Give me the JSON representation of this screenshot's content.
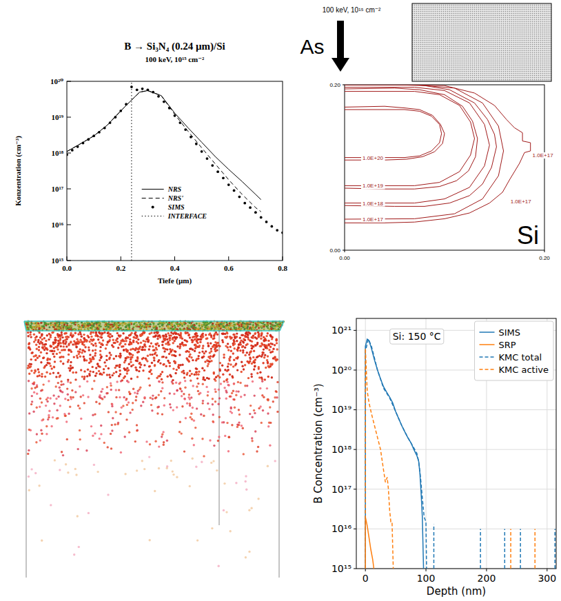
{
  "chart_data": [
    {
      "type": "line",
      "title": "B → Si₃N₄ (0.24 µm)/Si",
      "subtitle": "100 keV, 10¹⁵ cm⁻²",
      "x_label": "Tiefe (µm)",
      "y_label": "Konzentration (cm⁻³)",
      "log": "y",
      "xlim": [
        0,
        0.8
      ],
      "ylim": [
        1000000000000000.0,
        1e+20
      ],
      "xticks": [
        {
          "value": 0,
          "label": "0.0"
        },
        {
          "value": 0.2,
          "label": "0.2"
        },
        {
          "value": 0.4,
          "label": "0.4"
        },
        {
          "value": 0.6,
          "label": "0.6"
        },
        {
          "value": 0.8,
          "label": "0.8"
        }
      ],
      "yticks": [
        {
          "value": 1000000000000000.0,
          "label": "10¹⁵"
        },
        {
          "value": 1e+16,
          "label": "10¹⁶"
        },
        {
          "value": 1e+17,
          "label": "10¹⁷"
        },
        {
          "value": 1e+18,
          "label": "10¹⁸"
        },
        {
          "value": 1e+19,
          "label": "10¹⁹"
        },
        {
          "value": 1e+20,
          "label": "10²⁰"
        }
      ],
      "grid": false,
      "legend": "bottom",
      "series": [
        {
          "name": "NRS",
          "color": "#000000",
          "line_style": "solid",
          "x": [
            0,
            0.05,
            0.1,
            0.15,
            0.2,
            0.24,
            0.27,
            0.3,
            0.35,
            0.4,
            0.45,
            0.5,
            0.55,
            0.6,
            0.65,
            0.7,
            0.72
          ],
          "values": [
            1.1e+18,
            1.8e+18,
            3e+18,
            6e+18,
            1.5e+19,
            3e+19,
            5e+19,
            5.5e+19,
            4e+19,
            1.3e+19,
            5e+18,
            2e+18,
            8e+17,
            3.5e+17,
            1.6e+17,
            7e+16,
            5e+16
          ]
        },
        {
          "name": "NRS'",
          "color": "#000000",
          "line_style": "dashed",
          "x": [
            0,
            0.05,
            0.1,
            0.15,
            0.2,
            0.24,
            0.27,
            0.3,
            0.35,
            0.4,
            0.45,
            0.5,
            0.55,
            0.6,
            0.65,
            0.7,
            0.72
          ],
          "values": [
            1.1e+18,
            1.8e+18,
            3e+18,
            6e+18,
            1.5e+19,
            3e+19,
            5e+19,
            5.5e+19,
            4e+19,
            1.2e+19,
            4e+18,
            1.4e+18,
            5e+17,
            1.8e+17,
            7e+16,
            3e+16,
            2.3e+16
          ]
        },
        {
          "name": "SIMS",
          "color": "#000000",
          "line_style": "none",
          "marker": "circle",
          "x": [
            0,
            0.02,
            0.04,
            0.06,
            0.08,
            0.1,
            0.12,
            0.14,
            0.16,
            0.18,
            0.2,
            0.22,
            0.24,
            0.26,
            0.28,
            0.3,
            0.32,
            0.34,
            0.36,
            0.38,
            0.4,
            0.42,
            0.44,
            0.46,
            0.48,
            0.5,
            0.52,
            0.54,
            0.56,
            0.58,
            0.6,
            0.62,
            0.64,
            0.66,
            0.68,
            0.7,
            0.72,
            0.74,
            0.76,
            0.78,
            0.8
          ],
          "values": [
            9e+17,
            1.2e+18,
            1.5e+18,
            1.9e+18,
            2.4e+18,
            3e+18,
            3.8e+18,
            5e+18,
            7e+18,
            1e+19,
            1.5e+19,
            2.3e+19,
            7e+19,
            5.8e+19,
            6.2e+19,
            5.8e+19,
            5e+19,
            3.8e+19,
            2.7e+19,
            1.8e+19,
            1.1e+19,
            7e+18,
            4.5e+18,
            2.8e+18,
            1.8e+18,
            1.1e+18,
            7e+17,
            4.5e+17,
            3e+17,
            2e+17,
            1.3e+17,
            9e+16,
            6e+16,
            4e+16,
            3e+16,
            2.2e+16,
            1.6e+16,
            1.2e+16,
            9000000000000000.0,
            7000000000000000.0,
            6000000000000000.0
          ]
        },
        {
          "name": "INTERFACE",
          "color": "#000000",
          "line_style": "dotted",
          "x": [
            0.24,
            0.24
          ],
          "values": [
            1000000000000000.0,
            1e+20
          ]
        }
      ]
    },
    {
      "type": "contour",
      "implant_label": "As",
      "implant_note": "100 keV, 10¹⁵ cm⁻²",
      "region_label": "Si",
      "xlim": [
        0,
        0.2
      ],
      "ylim": [
        0,
        0.2
      ],
      "xticks": [
        {
          "value": 0,
          "label": "0.00"
        },
        {
          "value": 0.2,
          "label": "0.20"
        }
      ],
      "yticks": [
        {
          "value": 0,
          "label": "0.00"
        },
        {
          "value": 0.2,
          "label": "0.20"
        }
      ],
      "color": "#a01818",
      "series": [
        {
          "name": "1.0E+20",
          "line_style": "solid",
          "x": [
            0,
            0.06,
            0.075,
            0.087,
            0.095,
            0.097,
            0.095,
            0.087,
            0.075,
            0.06,
            0
          ],
          "y": [
            0.17,
            0.17,
            0.168,
            0.162,
            0.152,
            0.141,
            0.13,
            0.12,
            0.114,
            0.112,
            0.112
          ]
        },
        {
          "name": "1.0E+19",
          "line_style": "solid",
          "x": [
            0,
            0.07,
            0.095,
            0.115,
            0.126,
            0.13,
            0.126,
            0.115,
            0.095,
            0.07,
            0
          ],
          "y": [
            0.192,
            0.192,
            0.188,
            0.175,
            0.155,
            0.135,
            0.115,
            0.095,
            0.082,
            0.078,
            0.078
          ]
        },
        {
          "name": "1.0E+18",
          "line_style": "solid",
          "x": [
            0,
            0.07,
            0.1,
            0.125,
            0.14,
            0.145,
            0.14,
            0.125,
            0.1,
            0.07,
            0
          ],
          "y": [
            0.197,
            0.197,
            0.193,
            0.178,
            0.152,
            0.127,
            0.102,
            0.076,
            0.062,
            0.057,
            0.057
          ]
        },
        {
          "name": "1.0E+17",
          "line_style": "solid",
          "x": [
            0,
            0.07,
            0.11,
            0.138,
            0.154,
            0.159,
            0.154,
            0.138,
            0.11,
            0.07,
            0
          ],
          "y": [
            0.2,
            0.2,
            0.196,
            0.178,
            0.15,
            0.12,
            0.09,
            0.062,
            0.044,
            0.038,
            0.0375
          ]
        },
        {
          "line_style": "solid",
          "x": [
            0,
            0.04,
            0.06,
            0.075,
            0.088,
            0.096,
            0.1,
            0.098,
            0.09,
            0.078,
            0.062,
            0.04,
            0
          ],
          "y": [
            0.173,
            0.174,
            0.172,
            0.17,
            0.163,
            0.152,
            0.141,
            0.129,
            0.119,
            0.113,
            0.11,
            0.109,
            0.109
          ]
        },
        {
          "line_style": "solid",
          "x": [
            0,
            0.05,
            0.075,
            0.1,
            0.118,
            0.128,
            0.133,
            0.131,
            0.124,
            0.112,
            0.095,
            0.07,
            0.04,
            0
          ],
          "y": [
            0.195,
            0.196,
            0.194,
            0.188,
            0.174,
            0.156,
            0.135,
            0.113,
            0.096,
            0.084,
            0.077,
            0.074,
            0.074,
            0.075
          ]
        },
        {
          "line_style": "solid",
          "x": [
            0,
            0.05,
            0.08,
            0.105,
            0.13,
            0.143,
            0.15,
            0.152,
            0.147,
            0.138,
            0.125,
            0.105,
            0.08,
            0.05,
            0
          ],
          "y": [
            0.2,
            0.2,
            0.199,
            0.194,
            0.178,
            0.158,
            0.14,
            0.125,
            0.1,
            0.08,
            0.066,
            0.057,
            0.053,
            0.053,
            0.054
          ]
        },
        {
          "line_style": "solid",
          "x": [
            0,
            0.06,
            0.1,
            0.13,
            0.15,
            0.162,
            0.17,
            0.178,
            0.178,
            0.186,
            0.186,
            0.18,
            0.175,
            0.17,
            0.165,
            0.158,
            0.145,
            0.125,
            0.1,
            0.07,
            0.04,
            0
          ],
          "y": [
            0.2,
            0.2,
            0.199,
            0.19,
            0.175,
            0.158,
            0.148,
            0.142,
            0.132,
            0.13,
            0.12,
            0.118,
            0.105,
            0.095,
            0.085,
            0.07,
            0.057,
            0.045,
            0.038,
            0.034,
            0.033,
            0.033
          ]
        }
      ],
      "annotations": [
        {
          "text": "1.0E+17",
          "x": 0.188,
          "y": 0.115
        },
        {
          "text": "1.0E+17",
          "x": 0.166,
          "y": 0.059
        }
      ]
    },
    {
      "type": "line",
      "x_label": "Depth (nm)",
      "y_label": "B Concentration (cm⁻³)",
      "log": "y",
      "xlim": [
        -15,
        315
      ],
      "ylim": [
        1000000000000000.0,
        2e+21
      ],
      "xticks": [
        0,
        100,
        200,
        300
      ],
      "yticks": [
        {
          "value": 1000000000000000.0,
          "label": "10¹⁵"
        },
        {
          "value": 1e+16,
          "label": "10¹⁶"
        },
        {
          "value": 1e+17,
          "label": "10¹⁷"
        },
        {
          "value": 1e+18,
          "label": "10¹⁸"
        },
        {
          "value": 1e+19,
          "label": "10¹⁹"
        },
        {
          "value": 1e+20,
          "label": "10²⁰"
        },
        {
          "value": 1e+21,
          "label": "10²¹"
        }
      ],
      "grid": true,
      "legend": "upper-right",
      "annotations": [
        {
          "text": "Si: 150 °C",
          "x": 45,
          "y": 7e+20
        }
      ],
      "series": [
        {
          "name": "SIMS",
          "color": "#1f77b4",
          "line_style": "solid",
          "x": [
            0,
            0,
            3,
            6,
            10,
            15,
            20,
            25,
            30,
            35,
            40,
            45,
            50,
            55,
            60,
            65,
            70,
            75,
            80,
            85,
            88,
            90,
            92,
            94,
            96
          ],
          "values": [
            1000000000000000.0,
            4e+20,
            6e+20,
            5.5e+20,
            3.5e+20,
            1.8e+20,
            1e+20,
            6e+19,
            3.8e+19,
            2.8e+19,
            2.1e+19,
            1.5e+19,
            9e+18,
            6e+18,
            4e+18,
            2.8e+18,
            2e+18,
            1.5e+18,
            1e+18,
            7e+17,
            5e+17,
            2.5e+17,
            8e+16,
            2e+16,
            1000000000000000.0
          ]
        },
        {
          "name": "SRP",
          "color": "#ff7f0e",
          "line_style": "solid",
          "x": [
            0,
            0,
            3,
            6,
            9,
            12,
            14
          ],
          "values": [
            1000000000000000.0,
            2e+16,
            1.2e+16,
            6000000000000000.0,
            3000000000000000.0,
            1700000000000000.0,
            1000000000000000.0
          ]
        },
        {
          "name": "KMC total",
          "color": "#1f77b4",
          "line_style": "dashed",
          "x": [
            0,
            0,
            5,
            10,
            20,
            30,
            40,
            50,
            60,
            70,
            80,
            85,
            88,
            91,
            94,
            97,
            100,
            101,
            107,
            113,
            113,
            150,
            190,
            190,
            210,
            230,
            230,
            243,
            256,
            256,
            285,
            313,
            313
          ],
          "values": [
            1000000000000000.0,
            3e+20,
            6e+20,
            4e+20,
            1e+20,
            3.5e+19,
            2e+19,
            9e+18,
            4e+18,
            2e+18,
            1.1e+18,
            8e+17,
            5e+17,
            2e+17,
            6e+16,
            2e+16,
            1.5e+16,
            1000000000000000.0,
            null,
            1000000000000000.0,
            1.3e+16,
            null,
            1000000000000000.0,
            1e+16,
            null,
            1000000000000000.0,
            1e+16,
            null,
            1000000000000000.0,
            1e+16,
            null,
            1000000000000000.0,
            1e+16
          ]
        },
        {
          "name": "KMC active",
          "color": "#ff7f0e",
          "line_style": "dashed",
          "x": [
            0,
            0,
            3,
            6,
            10,
            15,
            20,
            25,
            30,
            33,
            36,
            38,
            40,
            42,
            44,
            46,
            200,
            240,
            240,
            260,
            280,
            280
          ],
          "values": [
            1000000000000000.0,
            3.5e+20,
            3e+19,
            1.5e+19,
            8e+18,
            4e+18,
            2e+18,
            1e+18,
            3e+17,
            1.5e+17,
            2e+17,
            1e+17,
            3e+16,
            1.5e+16,
            1.5e+16,
            1000000000000000.0,
            null,
            1000000000000000.0,
            1e+16,
            null,
            1000000000000000.0,
            1e+16
          ]
        }
      ]
    }
  ]
}
